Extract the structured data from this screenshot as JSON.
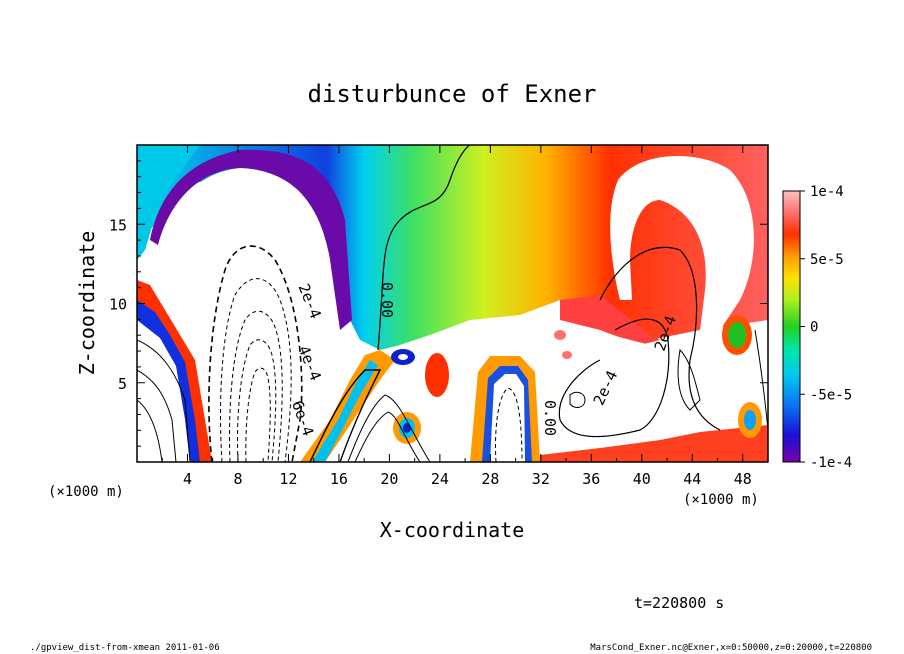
{
  "chart_data": {
    "type": "heatmap",
    "title": "disturbunce of Exner",
    "xlabel": "X-coordinate",
    "ylabel": "Z-coordinate",
    "x_unit": "(×1000 m)",
    "x_unit_right": "(×1000 m)",
    "xlim": [
      0,
      50
    ],
    "ylim": [
      0,
      20
    ],
    "x_ticks": [
      "4",
      "8",
      "12",
      "16",
      "20",
      "24",
      "28",
      "32",
      "36",
      "40",
      "44",
      "48"
    ],
    "y_ticks": [
      "5",
      "10",
      "15"
    ],
    "colorbar": {
      "min": -0.0001,
      "max": 0.0001,
      "tick_labels": [
        "1e-4",
        "5e-5",
        "0",
        "-5e-5",
        "-1e-4"
      ],
      "tick_values": [
        0.0001,
        5e-05,
        0,
        -5e-05,
        -0.0001
      ]
    },
    "contour_labels": [
      "2e-4",
      "4e-4",
      "6e-4",
      "0.00",
      "0.00",
      "2e-4",
      "2e-4"
    ],
    "time_label": "t=220800 s"
  },
  "footer": {
    "left": "./gpview_dist-from-xmean  2011-01-06",
    "right": "MarsCond_Exner.nc@Exner,x=0:50000,z=0:20000,t=220800"
  }
}
